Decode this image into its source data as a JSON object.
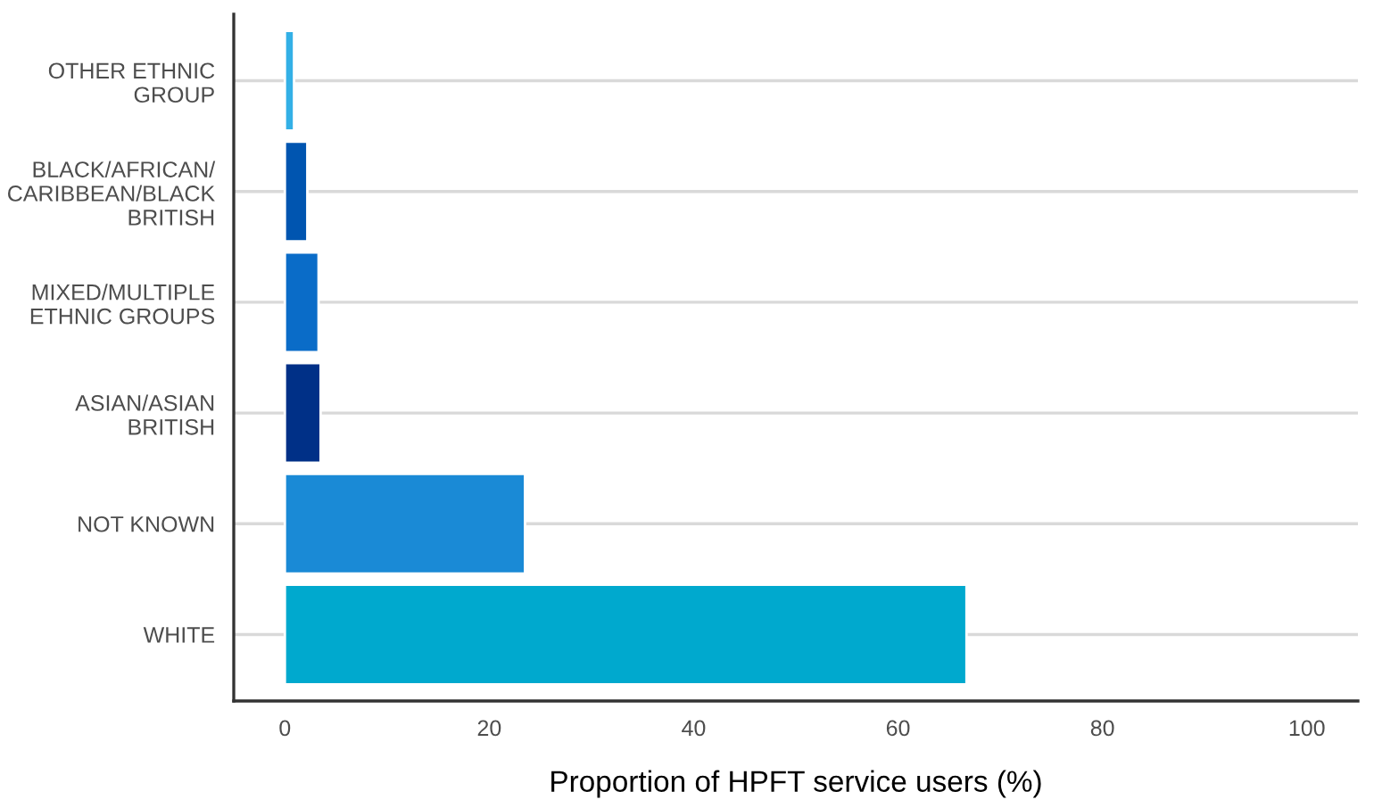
{
  "chart_data": {
    "type": "bar",
    "orientation": "horizontal",
    "xlabel": "Proportion of HPFT service users (%)",
    "categories": [
      "OTHER ETHNIC\nGROUP",
      "BLACK/AFRICAN/\nCARIBBEAN/BLACK\nBRITISH",
      "MIXED/MULTIPLE\nETHNIC GROUPS",
      "ASIAN/ASIAN\nBRITISH",
      "NOT KNOWN",
      "WHITE"
    ],
    "values": [
      0.9,
      2.2,
      3.3,
      3.5,
      23.5,
      66.7
    ],
    "colors": [
      "#33b0e6",
      "#0055b0",
      "#0a6cc8",
      "#003087",
      "#1a8ad6",
      "#00a9ce"
    ],
    "xlim": [
      -5,
      105
    ],
    "xticks": [
      0,
      20,
      40,
      60,
      80,
      100
    ],
    "grid": "y"
  }
}
